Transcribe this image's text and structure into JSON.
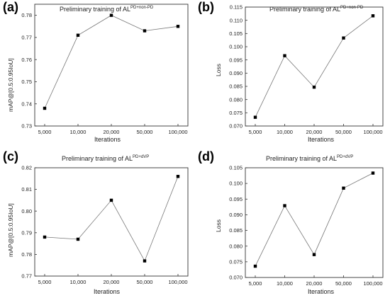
{
  "chart_data": [
    {
      "panel": "(a)",
      "type": "line",
      "title_prefix": "Preliminary training of AL",
      "title_sup": "PD+non-PD",
      "xlabel": "Iterations",
      "ylabel": "mAP@[0.5:0.95IoU]",
      "categories": [
        "5,000",
        "10,000",
        "20,000",
        "50,000",
        "100,000"
      ],
      "values": [
        0.738,
        0.771,
        0.78,
        0.773,
        0.775
      ],
      "ylim": [
        0.73,
        0.785
      ],
      "yticks": [
        "0.73",
        "0.74",
        "0.75",
        "0.76",
        "0.77",
        "0.78"
      ],
      "ytick_values": [
        0.73,
        0.74,
        0.75,
        0.76,
        0.77,
        0.78
      ]
    },
    {
      "panel": "(b)",
      "type": "line",
      "title_prefix": "Preliminary training of AL",
      "title_sup": "PD+non-PD",
      "xlabel": "Iterations",
      "ylabel": "Loss",
      "categories": [
        "5,000",
        "10,000",
        "20,000",
        "50,000",
        "100,000"
      ],
      "values": [
        0.0733,
        0.0966,
        0.0847,
        0.1033,
        0.1117
      ],
      "ylim": [
        0.07,
        0.115
      ],
      "yticks": [
        "0.070",
        "0.075",
        "0.080",
        "0.085",
        "0.090",
        "0.095",
        "0.100",
        "0.105",
        "0.110",
        "0.115"
      ],
      "ytick_values": [
        0.07,
        0.075,
        0.08,
        0.085,
        0.09,
        0.095,
        0.1,
        0.105,
        0.11,
        0.115
      ]
    },
    {
      "panel": "(c)",
      "type": "line",
      "title_prefix": "Preliminary training of AL",
      "title_sup": "PD+dVP",
      "xlabel": "Iterations",
      "ylabel": "mAP@[0.5:0.95IoU]",
      "categories": [
        "5,000",
        "10,000",
        "20,000",
        "50,000",
        "100,000"
      ],
      "values": [
        0.788,
        0.787,
        0.805,
        0.777,
        0.816
      ],
      "ylim": [
        0.77,
        0.82
      ],
      "yticks": [
        "0.77",
        "0.78",
        "0.79",
        "0.80",
        "0.81",
        "0.82"
      ],
      "ytick_values": [
        0.77,
        0.78,
        0.79,
        0.8,
        0.81,
        0.82
      ]
    },
    {
      "panel": "(d)",
      "type": "line",
      "title_prefix": "Preliminary training of AL",
      "title_sup": "PD+dVP",
      "xlabel": "Iterations",
      "ylabel": "Loss",
      "categories": [
        "5,000",
        "10,000",
        "20,000",
        "50,000",
        "100,000"
      ],
      "values": [
        0.0736,
        0.0929,
        0.0773,
        0.0985,
        0.1033
      ],
      "ylim": [
        0.07,
        0.105
      ],
      "yticks": [
        "0.070",
        "0.075",
        "0.080",
        "0.085",
        "0.090",
        "0.095",
        "0.100",
        "0.105"
      ],
      "ytick_values": [
        0.07,
        0.075,
        0.08,
        0.085,
        0.09,
        0.095,
        0.1,
        0.105
      ]
    }
  ]
}
